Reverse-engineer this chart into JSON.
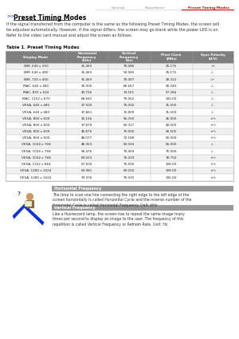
{
  "title": "Preset Timing Modes",
  "nav_items": [
    "General",
    "PowerSaver",
    "Preset Timing Modes"
  ],
  "intro_text": "If the signal transferred from the computer is the same as the following Preset Timing Modes, the screen will\nbe adjusted automatically. However, if the signal differs, the screen may go blank while the power LED is on.\nRefer to the video card manual and adjust the screen as follows.",
  "table_title": "Table 1. Preset Timing Modes",
  "col_headers": [
    "Display Mode",
    "Horizontal\nFrequency\n(kHz)",
    "Vertical\nFrequency\n(Hz)",
    "Pixel Clock\n(MHz)",
    "Sync Polarity\n(H/V)"
  ],
  "rows": [
    [
      "IBM, 640 x 350",
      "31.469",
      "70.086",
      "25.175",
      "+/-"
    ],
    [
      "IBM, 640 x 480",
      "31.469",
      "59.940",
      "25.175",
      "-/-"
    ],
    [
      "IBM, 720 x 400",
      "31.469",
      "70.087",
      "28.322",
      "-/+"
    ],
    [
      "MAC, 640 x 480",
      "35.000",
      "66.667",
      "30.240",
      "-/-"
    ],
    [
      "MAC, 832 x 624",
      "49.726",
      "74.551",
      "57.284",
      "-/-"
    ],
    [
      "MAC, 1152 x 870",
      "68.681",
      "75.062",
      "100.00",
      "-/-"
    ],
    [
      "VESA, 640 x 480",
      "37.500",
      "75.000",
      "31.500",
      "-/-"
    ],
    [
      "VESA, 640 x 480",
      "37.861",
      "72.809",
      "31.500",
      "-/-"
    ],
    [
      "VESA, 800 x 600",
      "35.156",
      "56.250",
      "36.000",
      "+/+"
    ],
    [
      "VESA, 800 x 600",
      "37.879",
      "60.317",
      "40.000",
      "+/+"
    ],
    [
      "VESA, 800 x 600",
      "46.875",
      "75.000",
      "49.500",
      "+/+"
    ],
    [
      "VESA, 800 x 600",
      "48.077",
      "72.188",
      "50.000",
      "+/+"
    ],
    [
      "VESA, 1024 x 768",
      "48.363",
      "60.004",
      "65.000",
      "-/-"
    ],
    [
      "VESA, 1024 x 768",
      "56.476",
      "70.069",
      "75.000",
      "-/-"
    ],
    [
      "VESA, 1024 x 768",
      "60.023",
      "75.029",
      "78.750",
      "+/+"
    ],
    [
      "VESA, 1152 x 864",
      "67.500",
      "75.000",
      "108.00",
      "+/+"
    ],
    [
      "VESA, 1280 x 1024",
      "63.981",
      "60.020",
      "108.00",
      "+/+"
    ],
    [
      "VESA, 1280 x 1024",
      "79.976",
      "75.025",
      "135.00",
      "+/+"
    ]
  ],
  "horiz_freq_title": "Horizontal Frequency",
  "horiz_freq_text": "The time to scan one line connecting the right edge to the left edge of the\nscreen horizontally is called Horizontal Cycle and the inverse number of the\nHorizontal Cycle is called Horizontal Frequency. Unit: kHz",
  "vert_freq_title": "Vertical Frequency",
  "vert_freq_text": "Like a fluorescent lamp, the screen has to repeat the same image many\ntimes per second to display an image to the user. The frequency of this\nrepetition is called Vertical Frequency or Refresh Rate. Unit: Hz",
  "header_bg": "#7f7f7f",
  "header_fg": "#ffffff",
  "row_bg_even": "#f0f0f0",
  "row_bg_odd": "#ffffff",
  "table_border": "#aaaaaa",
  "nav_active_color": "#cc0000",
  "nav_inactive_color": "#888888",
  "section_header_bg": "#999999",
  "section_header_fg": "#ffffff",
  "bg_color": "#ffffff"
}
